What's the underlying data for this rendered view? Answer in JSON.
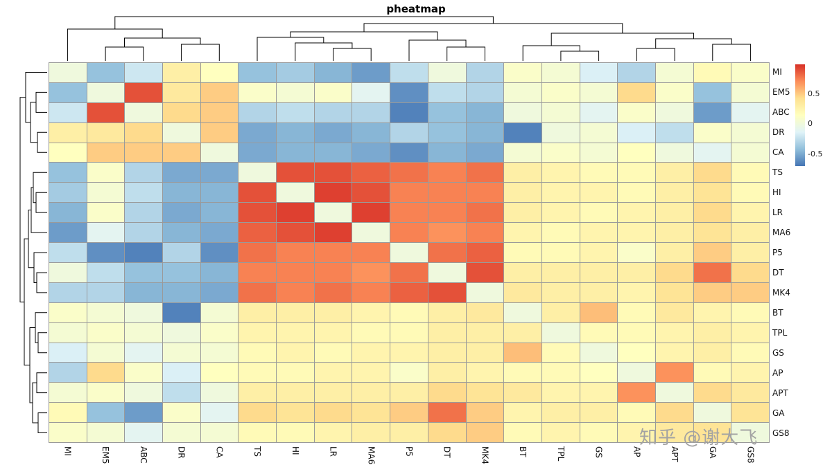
{
  "title": "pheatmap",
  "watermark": "知乎 @谢大飞",
  "legend": {
    "tick_labels": [
      "0.5",
      "0",
      "-0.5"
    ],
    "tick_values": [
      0.5,
      0,
      -0.5
    ]
  },
  "chart_data": {
    "type": "heatmap",
    "title": "pheatmap",
    "clustered_rows": true,
    "clustered_columns": true,
    "rows": [
      "MI",
      "EM5",
      "ABC",
      "DR",
      "CA",
      "TS",
      "HI",
      "LR",
      "MA6",
      "P5",
      "DT",
      "MK4",
      "BT",
      "TPL",
      "GS",
      "AP",
      "APT",
      "GA",
      "GS8"
    ],
    "columns": [
      "MI",
      "EM5",
      "ABC",
      "DR",
      "CA",
      "TS",
      "HI",
      "LR",
      "MA6",
      "P5",
      "DT",
      "MK4",
      "BT",
      "TPL",
      "GS",
      "AP",
      "APT",
      "GA",
      "GS8"
    ],
    "values": [
      [
        0,
        -0.4,
        -0.2,
        0.3,
        0.15,
        -0.4,
        -0.35,
        -0.45,
        -0.55,
        -0.25,
        0,
        -0.3,
        0.1,
        0.05,
        -0.15,
        -0.3,
        0.05,
        0.2,
        0.1
      ],
      [
        -0.4,
        0,
        0.9,
        0.35,
        0.5,
        0.1,
        0.05,
        0.1,
        -0.1,
        -0.6,
        -0.25,
        -0.3,
        0.05,
        0.1,
        0.05,
        0.45,
        0.1,
        -0.4,
        0.05
      ],
      [
        -0.2,
        0.9,
        0,
        0.45,
        0.5,
        -0.3,
        -0.25,
        -0.3,
        -0.3,
        -0.65,
        -0.4,
        -0.45,
        0,
        0.05,
        -0.1,
        0.1,
        0,
        -0.55,
        -0.1
      ],
      [
        0.3,
        0.35,
        0.45,
        0,
        0.5,
        -0.5,
        -0.45,
        -0.5,
        -0.45,
        -0.3,
        -0.4,
        -0.45,
        -0.65,
        0,
        0.05,
        -0.15,
        -0.25,
        0.1,
        0.05
      ],
      [
        0.15,
        0.5,
        0.5,
        0.5,
        0,
        -0.5,
        -0.45,
        -0.45,
        -0.5,
        -0.6,
        -0.45,
        -0.5,
        0.05,
        0.1,
        0.05,
        0.15,
        0,
        -0.1,
        0.05
      ],
      [
        -0.4,
        0.1,
        -0.3,
        -0.5,
        -0.5,
        0,
        0.9,
        0.9,
        0.85,
        0.8,
        0.75,
        0.8,
        0.3,
        0.25,
        0.2,
        0.2,
        0.3,
        0.45,
        0.2
      ],
      [
        -0.35,
        0.05,
        -0.25,
        -0.45,
        -0.45,
        0.9,
        0,
        0.95,
        0.9,
        0.75,
        0.75,
        0.75,
        0.3,
        0.25,
        0.25,
        0.2,
        0.3,
        0.4,
        0.2
      ],
      [
        -0.45,
        0.1,
        -0.3,
        -0.5,
        -0.45,
        0.9,
        0.95,
        0,
        0.95,
        0.75,
        0.75,
        0.8,
        0.3,
        0.25,
        0.2,
        0.25,
        0.3,
        0.45,
        0.25
      ],
      [
        -0.55,
        -0.1,
        -0.3,
        -0.45,
        -0.5,
        0.85,
        0.9,
        0.95,
        0,
        0.75,
        0.7,
        0.75,
        0.25,
        0.2,
        0.25,
        0.25,
        0.3,
        0.4,
        0.3
      ],
      [
        -0.25,
        -0.6,
        -0.65,
        -0.3,
        -0.6,
        0.8,
        0.75,
        0.75,
        0.75,
        0,
        0.8,
        0.85,
        0.2,
        0.2,
        0.25,
        0.1,
        0.3,
        0.5,
        0.3
      ],
      [
        0,
        -0.25,
        -0.4,
        -0.4,
        -0.45,
        0.75,
        0.75,
        0.75,
        0.7,
        0.8,
        0,
        0.9,
        0.3,
        0.3,
        0.3,
        0.3,
        0.45,
        0.8,
        0.45
      ],
      [
        -0.3,
        -0.3,
        -0.45,
        -0.45,
        -0.5,
        0.8,
        0.75,
        0.8,
        0.75,
        0.85,
        0.9,
        0,
        0.35,
        0.3,
        0.3,
        0.25,
        0.4,
        0.5,
        0.5
      ],
      [
        0.1,
        0.05,
        0,
        -0.65,
        0.05,
        0.3,
        0.3,
        0.3,
        0.25,
        0.2,
        0.3,
        0.35,
        0,
        0.3,
        0.55,
        0.2,
        0.35,
        0.25,
        0.2
      ],
      [
        0.05,
        0.1,
        0.05,
        0,
        0.1,
        0.25,
        0.25,
        0.25,
        0.2,
        0.2,
        0.3,
        0.3,
        0.3,
        0,
        0.2,
        0.2,
        0.25,
        0.3,
        0.25
      ],
      [
        -0.15,
        0.05,
        -0.1,
        0.05,
        0.05,
        0.2,
        0.25,
        0.2,
        0.25,
        0.25,
        0.3,
        0.3,
        0.55,
        0.2,
        0,
        0.15,
        0.25,
        0.3,
        0.2
      ],
      [
        -0.3,
        0.45,
        0.1,
        -0.15,
        0.15,
        0.2,
        0.2,
        0.25,
        0.25,
        0.1,
        0.3,
        0.25,
        0.2,
        0.2,
        0.15,
        0,
        0.7,
        0.2,
        0.25
      ],
      [
        0.05,
        0.1,
        0,
        -0.25,
        0,
        0.3,
        0.3,
        0.3,
        0.3,
        0.3,
        0.45,
        0.4,
        0.35,
        0.25,
        0.25,
        0.7,
        0,
        0.45,
        0.35
      ],
      [
        0.2,
        -0.4,
        -0.55,
        0.1,
        -0.1,
        0.45,
        0.4,
        0.45,
        0.4,
        0.5,
        0.8,
        0.5,
        0.25,
        0.3,
        0.3,
        0.2,
        0.45,
        0,
        0.4
      ],
      [
        0.1,
        0.05,
        -0.1,
        0.05,
        0.05,
        0.2,
        0.2,
        0.25,
        0.3,
        0.3,
        0.45,
        0.5,
        0.2,
        0.25,
        0.2,
        0.25,
        0.35,
        0.4,
        0
      ]
    ],
    "colormap": {
      "name": "RdYlBu_reversed",
      "stops": [
        "#4575b4",
        "#91bfdb",
        "#e0f3f8",
        "#ffffbf",
        "#fee090",
        "#fc8d59",
        "#d73027"
      ],
      "domain": [
        -0.7,
        1.0
      ]
    },
    "legend_position": "right",
    "grid_color": "#9a9a9a"
  }
}
